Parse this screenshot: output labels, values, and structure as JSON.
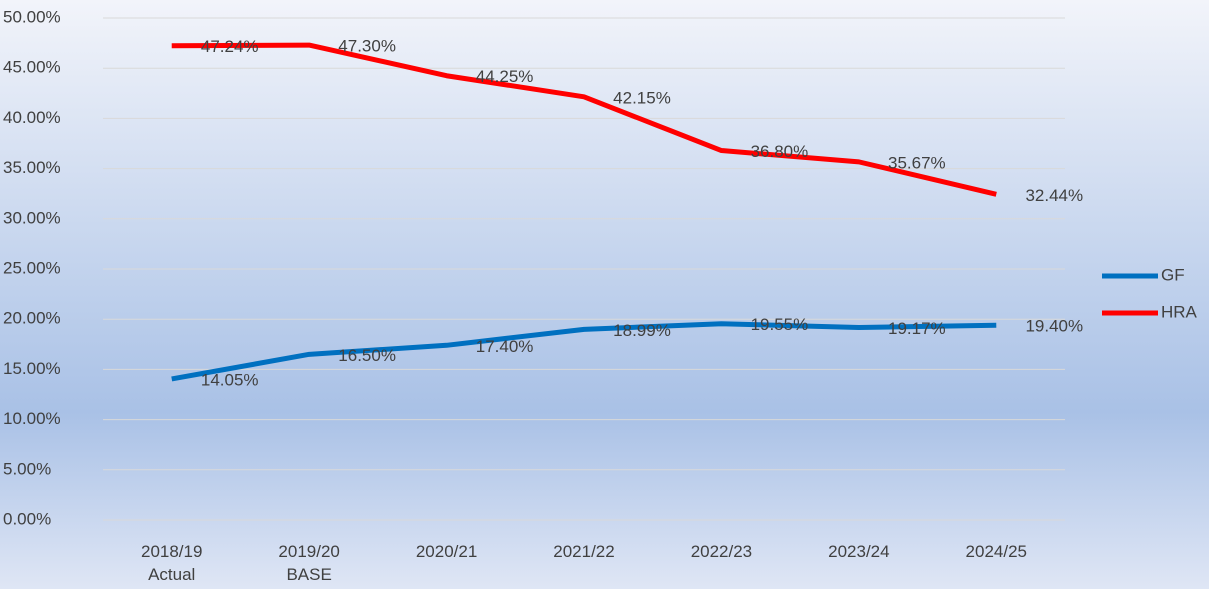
{
  "chart_data": {
    "type": "line",
    "categories": [
      "2018/19 Actual",
      "2019/20 BASE",
      "2020/21",
      "2021/22",
      "2022/23",
      "2023/24",
      "2024/25"
    ],
    "series": [
      {
        "name": "GF",
        "color": "#0070c0",
        "values": [
          14.05,
          16.5,
          17.4,
          18.99,
          19.55,
          19.17,
          19.4
        ],
        "value_labels": [
          "14.05%",
          "16.50%",
          "17.40%",
          "18.99%",
          "19.55%",
          "19.17%",
          "19.40%"
        ]
      },
      {
        "name": "HRA",
        "color": "#ff0000",
        "values": [
          47.24,
          47.3,
          44.25,
          42.15,
          36.8,
          35.67,
          32.44
        ],
        "value_labels": [
          "47.24%",
          "47.30%",
          "44.25%",
          "42.15%",
          "36.80%",
          "35.67%",
          "32.44%"
        ]
      }
    ],
    "ylim": [
      0,
      50
    ],
    "yticks": [
      {
        "value": 0,
        "label": "0.00%"
      },
      {
        "value": 5,
        "label": "5.00%"
      },
      {
        "value": 10,
        "label": "10.00%"
      },
      {
        "value": 15,
        "label": "15.00%"
      },
      {
        "value": 20,
        "label": "20.00%"
      },
      {
        "value": 25,
        "label": "25.00%"
      },
      {
        "value": 30,
        "label": "30.00%"
      },
      {
        "value": 35,
        "label": "35.00%"
      },
      {
        "value": 40,
        "label": "40.00%"
      },
      {
        "value": 45,
        "label": "45.00%"
      },
      {
        "value": 50,
        "label": "50.00%"
      }
    ],
    "grid": true,
    "legend": "right"
  }
}
